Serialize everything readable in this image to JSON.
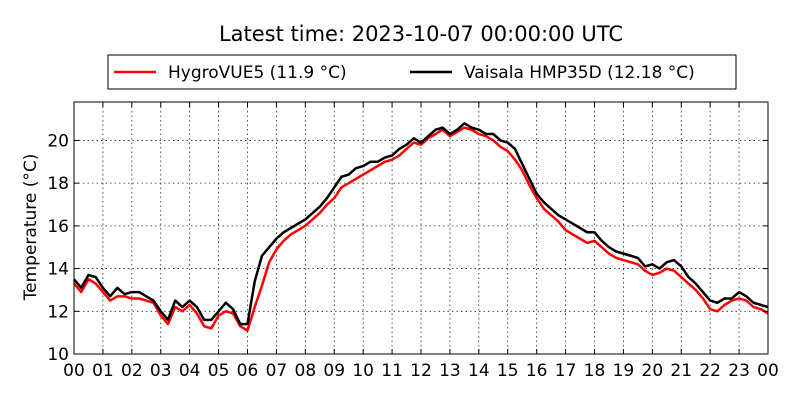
{
  "chart_data": {
    "type": "line",
    "title": "Latest time: 2023-10-07 00:00:00 UTC",
    "xlabel": "",
    "ylabel": "Temperature (°C)",
    "xlim": [
      0,
      24
    ],
    "ylim": [
      10,
      21.8
    ],
    "grid": true,
    "legend_position": "top-center",
    "x_ticks": [
      0,
      1,
      2,
      3,
      4,
      5,
      6,
      7,
      8,
      9,
      10,
      11,
      12,
      13,
      14,
      15,
      16,
      17,
      18,
      19,
      20,
      21,
      22,
      23,
      24
    ],
    "x_tick_labels": [
      "00",
      "01",
      "02",
      "03",
      "04",
      "05",
      "06",
      "07",
      "08",
      "09",
      "10",
      "11",
      "12",
      "13",
      "14",
      "15",
      "16",
      "17",
      "18",
      "19",
      "20",
      "21",
      "22",
      "23",
      "00"
    ],
    "y_ticks": [
      10,
      12,
      14,
      16,
      18,
      20
    ],
    "y_tick_labels": [
      "10",
      "12",
      "14",
      "16",
      "18",
      "20"
    ],
    "x": [
      0,
      0.25,
      0.5,
      0.75,
      1,
      1.25,
      1.5,
      1.75,
      2,
      2.25,
      2.5,
      2.75,
      3,
      3.25,
      3.5,
      3.75,
      4,
      4.25,
      4.5,
      4.75,
      5,
      5.25,
      5.5,
      5.75,
      6,
      6.25,
      6.5,
      6.75,
      7,
      7.25,
      7.5,
      7.75,
      8,
      8.25,
      8.5,
      8.75,
      9,
      9.25,
      9.5,
      9.75,
      10,
      10.25,
      10.5,
      10.75,
      11,
      11.25,
      11.5,
      11.75,
      12,
      12.25,
      12.5,
      12.75,
      13,
      13.25,
      13.5,
      13.75,
      14,
      14.25,
      14.5,
      14.75,
      15,
      15.25,
      15.5,
      15.75,
      16,
      16.25,
      16.5,
      16.75,
      17,
      17.25,
      17.5,
      17.75,
      18,
      18.25,
      18.5,
      18.75,
      19,
      19.25,
      19.5,
      19.75,
      20,
      20.25,
      20.5,
      20.75,
      21,
      21.25,
      21.5,
      21.75,
      22,
      22.25,
      22.5,
      22.75,
      23,
      23.25,
      23.5,
      23.75,
      24
    ],
    "series": [
      {
        "name": "HygroVUE5 (11.9 °C)",
        "color": "#ff0000",
        "values": [
          13.3,
          12.9,
          13.5,
          13.3,
          12.9,
          12.5,
          12.7,
          12.7,
          12.6,
          12.6,
          12.5,
          12.4,
          11.8,
          11.4,
          12.2,
          12.0,
          12.3,
          11.9,
          11.3,
          11.2,
          11.8,
          12.0,
          11.9,
          11.3,
          11.1,
          12.2,
          13.2,
          14.3,
          14.9,
          15.3,
          15.6,
          15.8,
          16.0,
          16.3,
          16.6,
          17.0,
          17.3,
          17.8,
          18.0,
          18.2,
          18.4,
          18.6,
          18.8,
          19.0,
          19.1,
          19.3,
          19.6,
          19.9,
          19.8,
          20.1,
          20.3,
          20.5,
          20.2,
          20.4,
          20.6,
          20.5,
          20.3,
          20.2,
          20.0,
          19.7,
          19.5,
          19.1,
          18.6,
          17.9,
          17.3,
          16.8,
          16.5,
          16.2,
          15.8,
          15.6,
          15.4,
          15.2,
          15.3,
          15.0,
          14.7,
          14.5,
          14.4,
          14.3,
          14.2,
          13.9,
          13.7,
          13.8,
          14.0,
          13.9,
          13.6,
          13.3,
          13.0,
          12.6,
          12.1,
          12.0,
          12.3,
          12.5,
          12.6,
          12.5,
          12.2,
          12.1,
          11.9
        ]
      },
      {
        "name": "Vaisala HMP35D (12.18 °C)",
        "color": "#000000",
        "values": [
          13.5,
          13.1,
          13.7,
          13.6,
          13.1,
          12.7,
          13.1,
          12.8,
          12.9,
          12.9,
          12.7,
          12.5,
          12.0,
          11.6,
          12.5,
          12.2,
          12.5,
          12.2,
          11.6,
          11.6,
          12.0,
          12.4,
          12.1,
          11.4,
          11.4,
          13.4,
          14.6,
          15.0,
          15.4,
          15.7,
          15.9,
          16.1,
          16.3,
          16.6,
          16.9,
          17.3,
          17.8,
          18.3,
          18.4,
          18.7,
          18.8,
          19.0,
          19.0,
          19.2,
          19.3,
          19.6,
          19.8,
          20.1,
          19.9,
          20.2,
          20.5,
          20.6,
          20.3,
          20.5,
          20.8,
          20.6,
          20.5,
          20.3,
          20.3,
          20.0,
          19.9,
          19.6,
          18.9,
          18.2,
          17.5,
          17.1,
          16.8,
          16.5,
          16.3,
          16.1,
          15.9,
          15.7,
          15.7,
          15.3,
          15.0,
          14.8,
          14.7,
          14.6,
          14.5,
          14.1,
          14.2,
          14.0,
          14.3,
          14.4,
          14.1,
          13.6,
          13.3,
          12.9,
          12.5,
          12.4,
          12.6,
          12.6,
          12.9,
          12.7,
          12.4,
          12.3,
          12.2
        ]
      }
    ]
  }
}
